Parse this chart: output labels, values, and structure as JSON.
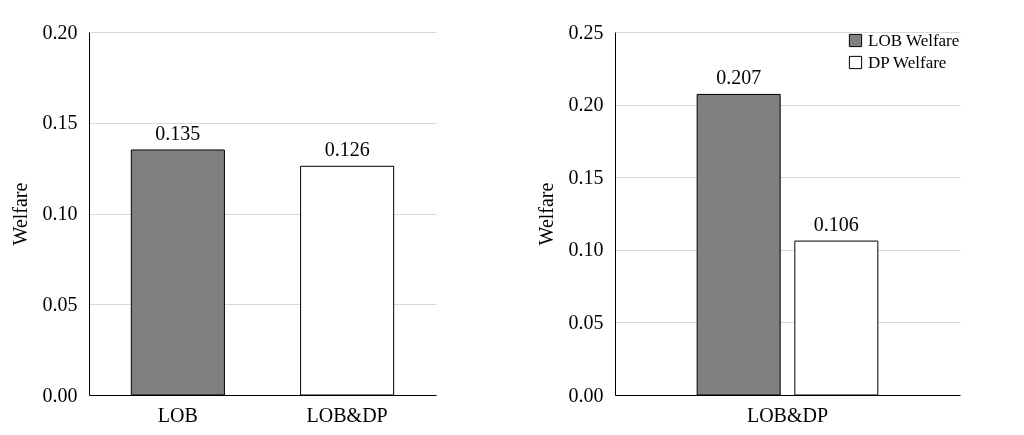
{
  "chart_data": [
    {
      "type": "bar",
      "ylabel": "Welfare",
      "categories": [
        "LOB",
        "LOB&DP"
      ],
      "values": [
        0.135,
        0.126
      ],
      "colors": [
        "#808080",
        "#ffffff"
      ],
      "ylim": [
        0,
        0.2
      ],
      "yticks": [
        {
          "value": 0,
          "label": "0.00"
        },
        {
          "value": 0.05,
          "label": "0.05"
        },
        {
          "value": 0.1,
          "label": "0.10"
        },
        {
          "value": 0.15,
          "label": "0.15"
        },
        {
          "value": 0.2,
          "label": "0.20"
        }
      ],
      "grid": "y",
      "data_labels": true,
      "legend": false
    },
    {
      "type": "bar",
      "ylabel": "Welfare",
      "categories": [
        "LOB&DP"
      ],
      "series": [
        {
          "name": "LOB Welfare",
          "color": "#808080",
          "values": [
            0.207
          ]
        },
        {
          "name": "DP Welfare",
          "color": "#ffffff",
          "values": [
            0.106
          ]
        }
      ],
      "ylim": [
        0,
        0.25
      ],
      "yticks": [
        {
          "value": 0,
          "label": "0.00"
        },
        {
          "value": 0.05,
          "label": "0.05"
        },
        {
          "value": 0.1,
          "label": "0.10"
        },
        {
          "value": 0.15,
          "label": "0.15"
        },
        {
          "value": 0.2,
          "label": "0.20"
        },
        {
          "value": 0.25,
          "label": "0.25"
        }
      ],
      "grid": "y",
      "data_labels": true,
      "legend": "top right"
    }
  ]
}
